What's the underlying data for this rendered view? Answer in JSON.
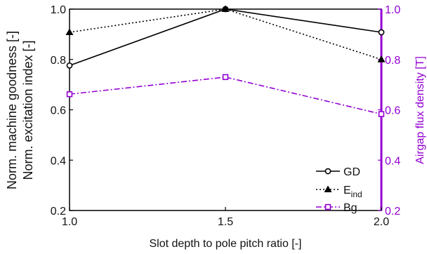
{
  "chart_data": {
    "type": "line",
    "x": [
      1.0,
      1.5,
      2.0
    ],
    "xlim": [
      1.0,
      2.0
    ],
    "x_ticks": [
      "1.0",
      "1.5",
      "2.0"
    ],
    "xlabel": "Slot depth to pole pitch ratio [-]",
    "ylabel_left_line1": "Norm. machine goodness [-]",
    "ylabel_left_line2": "Norm. excitation index [-]",
    "ylim_left": [
      0.2,
      1.0
    ],
    "y_ticks_left": [
      "0.2",
      "0.4",
      "0.6",
      "0.8",
      "1.0"
    ],
    "ylabel_right": "Airgap flux density [T]",
    "ylim_right": [
      0.2,
      1.0
    ],
    "y_ticks_right": [
      "0.2",
      "0.4",
      "0.6",
      "0.8",
      "1.0"
    ],
    "right_axis_color": "#9400d3",
    "grid": false,
    "legend_position": "lower-right",
    "series": [
      {
        "name": "GD",
        "legend_main": "GD",
        "legend_sub": "",
        "axis": "left",
        "values": [
          0.776,
          1.0,
          0.908
        ],
        "color": "#000000",
        "line_style": "solid",
        "marker": "circle"
      },
      {
        "name": "E_ind",
        "legend_main": "E",
        "legend_sub": "ind",
        "axis": "left",
        "values": [
          0.908,
          1.0,
          0.8
        ],
        "color": "#000000",
        "line_style": "dotted",
        "marker": "triangle"
      },
      {
        "name": "Bg",
        "legend_main": "Bg",
        "legend_sub": "",
        "axis": "right",
        "values": [
          0.662,
          0.73,
          0.583
        ],
        "color": "#9400d3",
        "line_style": "dashdot",
        "marker": "square"
      }
    ]
  }
}
